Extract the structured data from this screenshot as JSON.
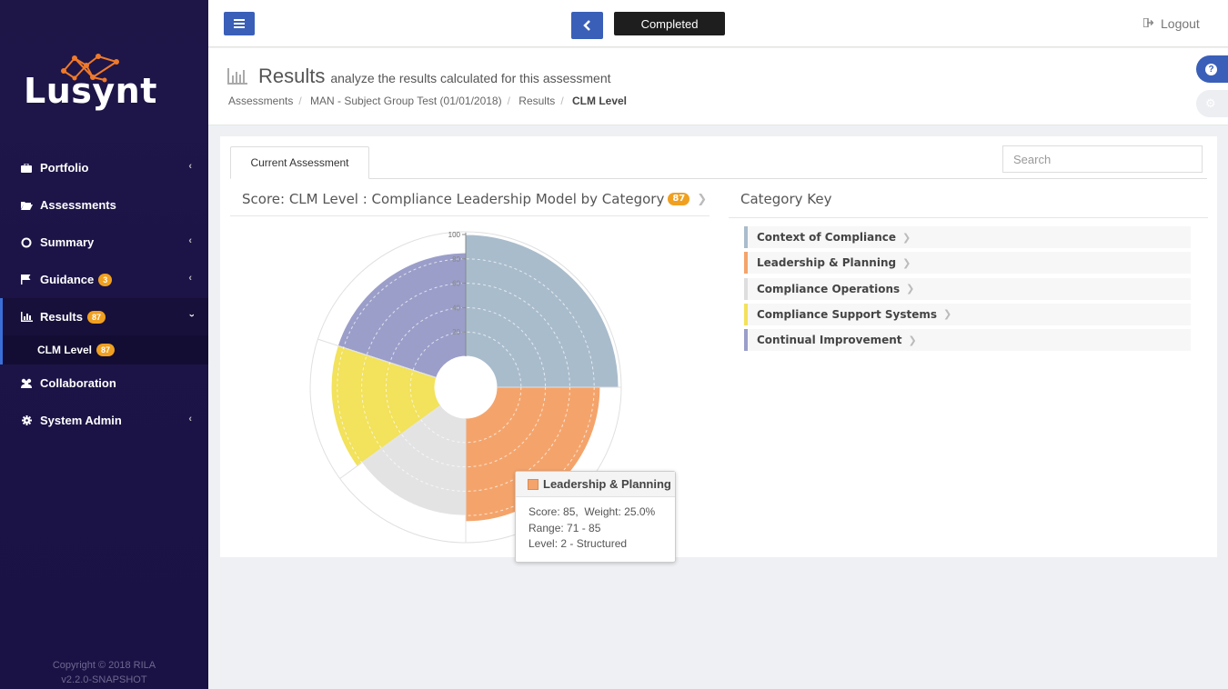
{
  "brand": {
    "name": "Lusynt"
  },
  "sidebar": {
    "items": [
      {
        "label": "Portfolio",
        "icon": "briefcase-icon",
        "has_chevron": true
      },
      {
        "label": "Assessments",
        "icon": "folder-open-icon",
        "has_chevron": false
      },
      {
        "label": "Summary",
        "icon": "circle-o-icon",
        "has_chevron": true
      },
      {
        "label": "Guidance",
        "icon": "flag-icon",
        "badge": "3",
        "has_chevron": true
      },
      {
        "label": "Results",
        "icon": "bar-chart-icon",
        "badge": "87",
        "expanded": true
      },
      {
        "label": "Collaboration",
        "icon": "users-icon",
        "has_chevron": false
      },
      {
        "label": "System Admin",
        "icon": "gear-icon",
        "has_chevron": true
      }
    ],
    "sub_item": {
      "label": "CLM Level",
      "badge": "87"
    },
    "copyright_line1": "Copyright © 2018 RILA",
    "copyright_line2": "v2.2.0-SNAPSHOT"
  },
  "topbar": {
    "status": "Completed",
    "logout": "Logout"
  },
  "header": {
    "title": "Results",
    "subtitle": "analyze the results calculated for this assessment",
    "breadcrumbs": [
      "Assessments",
      "MAN - Subject Group Test (01/01/2018)",
      "Results",
      "CLM Level"
    ]
  },
  "tabs": [
    {
      "label": "Current Assessment",
      "active": true
    }
  ],
  "search": {
    "placeholder": "Search"
  },
  "chart_section": {
    "title": "Score: CLM Level : Compliance Leadership Model by Category",
    "badge": "87"
  },
  "key_section": {
    "title": "Category Key",
    "items": [
      {
        "label": "Context of Compliance",
        "color": "#a9bccc"
      },
      {
        "label": "Leadership & Planning",
        "color": "#f4a46b"
      },
      {
        "label": "Compliance Operations",
        "color": "#dedede"
      },
      {
        "label": "Compliance Support Systems",
        "color": "#f2e25c"
      },
      {
        "label": "Continual Improvement",
        "color": "#9b9ec9"
      }
    ]
  },
  "tooltip": {
    "title": "Leadership & Planning",
    "line1": "Score: 85,  Weight: 25.0%",
    "line2": "Range: 71 - 85",
    "line3": "Level: 2 - Structured"
  },
  "chart_data": {
    "type": "polar-area",
    "rmax": 100,
    "tick_labels": [
      "100",
      "80",
      "60",
      "40",
      "20"
    ],
    "series": [
      {
        "name": "Context of Compliance",
        "value": 100,
        "weight": 25.0,
        "color": "#a9bccc"
      },
      {
        "name": "Leadership & Planning",
        "value": 85,
        "weight": 25.0,
        "color": "#f4a46b"
      },
      {
        "name": "Compliance Operations",
        "value": 80,
        "weight": 15.0,
        "color": "#e3e3e3"
      },
      {
        "name": "Compliance Support Systems",
        "value": 85,
        "weight": 15.0,
        "color": "#f2e25c"
      },
      {
        "name": "Continual Improvement",
        "value": 85,
        "weight": 20.0,
        "color": "#9b9ec9"
      }
    ]
  }
}
